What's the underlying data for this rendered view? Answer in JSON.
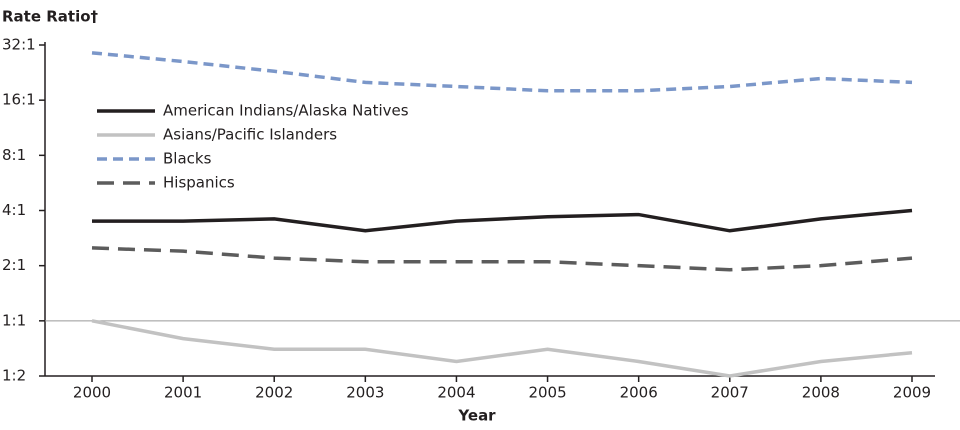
{
  "chart_data": {
    "type": "line",
    "y_label": "Rate Ratio†",
    "x_label": "Year",
    "categories": [
      "2000",
      "2001",
      "2002",
      "2003",
      "2004",
      "2005",
      "2006",
      "2007",
      "2008",
      "2009"
    ],
    "series": [
      {
        "name": "American Indians/Alaska Natives",
        "color": "#231f20",
        "dash": "solid",
        "values": [
          3.5,
          3.5,
          3.6,
          3.1,
          3.5,
          3.7,
          3.8,
          3.1,
          3.6,
          4.0
        ]
      },
      {
        "name": "Asians/Pacific Islanders",
        "color": "#c2c2c2",
        "dash": "solid",
        "values": [
          1.0,
          0.8,
          0.7,
          0.7,
          0.6,
          0.7,
          0.6,
          0.5,
          0.6,
          0.67
        ]
      },
      {
        "name": "Blacks",
        "color": "#7b97c9",
        "dash": "short",
        "values": [
          29,
          26,
          23,
          20,
          19,
          18,
          18,
          19,
          21,
          20
        ]
      },
      {
        "name": "Hispanics",
        "color": "#5c5c5c",
        "dash": "long",
        "values": [
          2.5,
          2.4,
          2.2,
          2.1,
          2.1,
          2.1,
          2.0,
          1.9,
          2.0,
          2.2
        ]
      }
    ],
    "log_scale": true,
    "ylim": [
      0.5,
      32
    ],
    "yticks": [
      {
        "value": 0.5,
        "label": "1:2"
      },
      {
        "value": 1,
        "label": "1:1"
      },
      {
        "value": 2,
        "label": "2:1"
      },
      {
        "value": 4,
        "label": "4:1"
      },
      {
        "value": 8,
        "label": "8:1"
      },
      {
        "value": 16,
        "label": "16:1"
      },
      {
        "value": 32,
        "label": "32:1"
      }
    ],
    "reference_line": 1,
    "legend": "upper left"
  }
}
